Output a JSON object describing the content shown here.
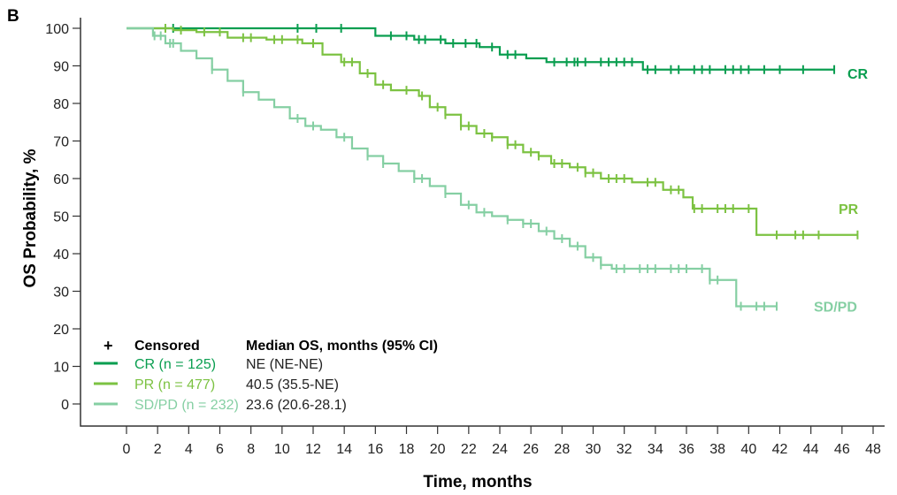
{
  "panel_label": "B",
  "chart_data": {
    "type": "line",
    "subtype": "kaplan-meier",
    "xlabel": "Time, months",
    "ylabel": "OS Probability, %",
    "xlim": [
      0,
      48
    ],
    "ylim": [
      0,
      100
    ],
    "xticks": [
      0,
      2,
      4,
      6,
      8,
      10,
      12,
      14,
      16,
      18,
      20,
      22,
      24,
      26,
      28,
      30,
      32,
      34,
      36,
      38,
      40,
      42,
      44,
      46,
      48
    ],
    "yticks": [
      0,
      10,
      20,
      30,
      40,
      50,
      60,
      70,
      80,
      90,
      100
    ],
    "grid": false,
    "legend_placement": "bottom-left",
    "censored_label": "Censored",
    "median_header": "Median OS, months (95% CI)",
    "series": [
      {
        "name": "CR (n = 125)",
        "end_label": "CR",
        "color": "#0a9e50",
        "median": "NE (NE-NE)",
        "steps": [
          [
            0,
            100
          ],
          [
            16,
            98
          ],
          [
            18.5,
            97
          ],
          [
            20.5,
            96
          ],
          [
            22.7,
            95
          ],
          [
            24,
            93
          ],
          [
            25.7,
            92
          ],
          [
            27,
            91
          ],
          [
            33.2,
            89
          ],
          [
            45.5,
            89
          ]
        ],
        "censored": [
          3,
          11,
          12.2,
          13.8,
          17,
          18,
          18.8,
          19.2,
          20.2,
          21,
          21.8,
          22.5,
          23.5,
          24.5,
          25,
          27.5,
          28.3,
          28.8,
          29,
          29.5,
          30.5,
          31,
          31.5,
          32,
          32.5,
          33.5,
          34,
          35,
          35.5,
          36.5,
          37,
          37.5,
          38.5,
          39,
          39.5,
          40,
          41,
          42,
          43.5,
          45.5
        ]
      },
      {
        "name": "PR (n = 477)",
        "end_label": "PR",
        "color": "#7cc242",
        "median": "40.5 (35.5-NE)",
        "steps": [
          [
            0,
            100
          ],
          [
            3,
            99.5
          ],
          [
            4.5,
            99
          ],
          [
            6.5,
            97.5
          ],
          [
            9,
            97
          ],
          [
            11.3,
            96
          ],
          [
            12.6,
            93
          ],
          [
            13.8,
            91
          ],
          [
            15,
            88
          ],
          [
            16,
            85
          ],
          [
            17,
            83.5
          ],
          [
            18.8,
            82
          ],
          [
            19.5,
            79
          ],
          [
            20.5,
            77
          ],
          [
            21.5,
            74
          ],
          [
            22.5,
            72
          ],
          [
            23.5,
            71
          ],
          [
            24.5,
            69
          ],
          [
            25.5,
            67
          ],
          [
            26.5,
            66
          ],
          [
            27.3,
            64
          ],
          [
            28.5,
            63
          ],
          [
            29.5,
            61.5
          ],
          [
            30.5,
            60
          ],
          [
            32.5,
            59
          ],
          [
            34.5,
            57
          ],
          [
            35.8,
            55
          ],
          [
            36.4,
            52
          ],
          [
            40.5,
            45
          ],
          [
            47,
            45
          ]
        ],
        "censored": [
          2.5,
          3.5,
          5,
          6,
          7.5,
          8,
          9.5,
          10,
          11,
          12,
          14,
          14.5,
          15.5,
          16.5,
          18,
          19,
          20,
          20.5,
          21.5,
          22,
          23,
          23.5,
          24.5,
          25,
          26,
          26.5,
          27.5,
          28,
          29,
          29.5,
          30,
          31,
          31.5,
          32,
          33.5,
          34,
          35,
          35.5,
          36.5,
          37,
          38,
          38.5,
          39,
          40,
          41.8,
          43,
          43.5,
          44.5,
          47
        ]
      },
      {
        "name": "SD/PD (n = 232)",
        "end_label": "SD/PD",
        "color": "#85cfa3",
        "median": "23.6 (20.6-28.1)",
        "steps": [
          [
            0,
            100
          ],
          [
            1.7,
            98
          ],
          [
            2.5,
            96
          ],
          [
            3.5,
            94
          ],
          [
            4.5,
            92
          ],
          [
            5.5,
            89
          ],
          [
            6.5,
            86
          ],
          [
            7.5,
            83
          ],
          [
            8.5,
            81
          ],
          [
            9.5,
            79
          ],
          [
            10.5,
            76
          ],
          [
            11.5,
            74
          ],
          [
            12.5,
            73
          ],
          [
            13.5,
            71
          ],
          [
            14.5,
            68
          ],
          [
            15.5,
            66
          ],
          [
            16.5,
            64
          ],
          [
            17.5,
            62
          ],
          [
            18.5,
            60
          ],
          [
            19.5,
            58
          ],
          [
            20.5,
            56
          ],
          [
            21.5,
            53
          ],
          [
            22.5,
            51
          ],
          [
            23.5,
            50
          ],
          [
            24.5,
            49
          ],
          [
            25.5,
            48
          ],
          [
            26.5,
            46
          ],
          [
            27.5,
            44
          ],
          [
            28.5,
            42
          ],
          [
            29.5,
            39
          ],
          [
            30.5,
            37
          ],
          [
            31.2,
            36
          ],
          [
            37.5,
            33
          ],
          [
            39.2,
            26
          ],
          [
            41.8,
            26
          ]
        ],
        "censored": [
          1.8,
          2.2,
          2.8,
          3,
          5.5,
          7.5,
          11,
          12,
          14,
          15.5,
          16.5,
          18.5,
          19,
          20.5,
          22,
          23,
          24.5,
          25.5,
          26,
          27,
          28,
          29,
          30,
          30.5,
          31.5,
          32,
          33,
          33.5,
          34,
          35,
          35.5,
          36,
          37,
          37.5,
          38,
          39.5,
          40.5,
          41,
          41.8
        ]
      }
    ]
  }
}
